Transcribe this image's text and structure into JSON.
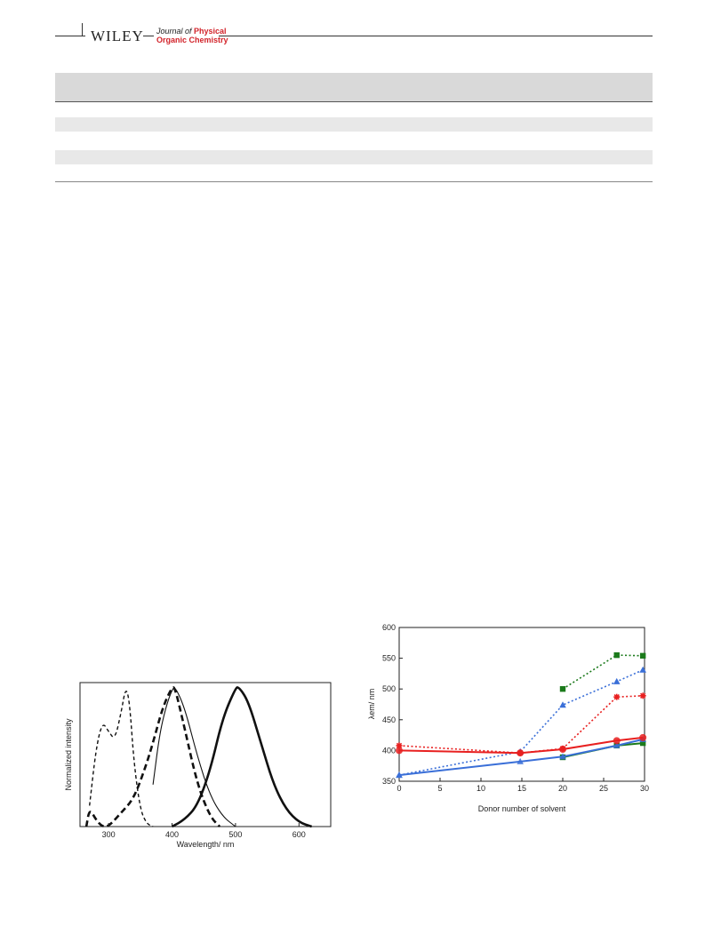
{
  "header": {
    "publisher": "WILEY",
    "journal_prefix": "Journal of ",
    "journal_word": "Physical",
    "journal_line2": "Organic Chemistry"
  },
  "figure_left": {
    "ylabel": "Normalized intensity",
    "xlabel": "Wavelength/ nm",
    "xticks": [
      300,
      400,
      500,
      600
    ]
  },
  "figure_right": {
    "ylabel": "λem/ nm",
    "xlabel": "Donor number of solvent",
    "xticks": [
      0,
      5,
      10,
      15,
      20,
      25,
      30
    ],
    "yticks": [
      350,
      400,
      450,
      500,
      550,
      600
    ]
  },
  "chart_data": [
    {
      "type": "line",
      "xlabel": "Wavelength/ nm",
      "ylabel": "Normalized intensity",
      "xlim": [
        255,
        650
      ],
      "ylim": [
        0,
        1.03
      ],
      "series": [
        {
          "style": "thin-dashed",
          "x": [
            270,
            280,
            290,
            300,
            310,
            320,
            327,
            333,
            340,
            350,
            360,
            370
          ],
          "y": [
            0.15,
            0.55,
            0.75,
            0.68,
            0.62,
            0.82,
            1.0,
            0.9,
            0.45,
            0.12,
            0.02,
            0.0
          ]
        },
        {
          "style": "thick-dashed",
          "x": [
            265,
            270,
            280,
            290,
            300,
            320,
            340,
            360,
            370,
            385,
            400,
            405,
            420,
            440,
            460,
            475
          ],
          "y": [
            0.0,
            0.13,
            0.05,
            0.0,
            0.0,
            0.1,
            0.2,
            0.45,
            0.6,
            0.85,
            1.0,
            0.99,
            0.7,
            0.3,
            0.07,
            0.0
          ]
        },
        {
          "style": "thin-solid",
          "x": [
            370,
            380,
            390,
            400,
            405,
            420,
            440,
            460,
            480,
            500
          ],
          "y": [
            0.3,
            0.65,
            0.85,
            0.98,
            1.0,
            0.85,
            0.5,
            0.22,
            0.07,
            0.0
          ]
        },
        {
          "style": "thick-solid",
          "x": [
            400,
            420,
            440,
            460,
            480,
            500,
            505,
            520,
            540,
            560,
            580,
            600,
            620
          ],
          "y": [
            0.0,
            0.05,
            0.15,
            0.4,
            0.78,
            0.99,
            1.0,
            0.9,
            0.6,
            0.3,
            0.12,
            0.03,
            0.0
          ]
        }
      ]
    },
    {
      "type": "line",
      "xlabel": "Donor number of solvent",
      "ylabel": "λem/ nm",
      "xlim": [
        0,
        30
      ],
      "ylim": [
        350,
        600
      ],
      "series": [
        {
          "color": "#1b7a1b",
          "marker": "square",
          "dash": "solid",
          "x": [
            20,
            26.6,
            29.8
          ],
          "y": [
            389,
            408,
            412
          ]
        },
        {
          "color": "#1b7a1b",
          "marker": "square",
          "dash": "dotted",
          "x": [
            20,
            26.6,
            29.8
          ],
          "y": [
            500,
            555,
            554
          ]
        },
        {
          "color": "#3a6fd8",
          "marker": "triangle",
          "dash": "solid",
          "x": [
            0,
            14.8,
            20,
            26.6,
            29.8
          ],
          "y": [
            360,
            382,
            390,
            408,
            418
          ]
        },
        {
          "color": "#3a6fd8",
          "marker": "triangle",
          "dash": "dotted",
          "x": [
            0,
            14.8,
            20,
            26.6,
            29.8
          ],
          "y": [
            360,
            398,
            474,
            512,
            531
          ]
        },
        {
          "color": "#e82020",
          "marker": "circle",
          "dash": "solid",
          "x": [
            0,
            14.8,
            20,
            26.6,
            29.8
          ],
          "y": [
            400,
            396,
            402,
            416,
            421
          ]
        },
        {
          "color": "#e82020",
          "marker": "asterisk",
          "dash": "dotted",
          "x": [
            0,
            14.8,
            20,
            26.6,
            29.8
          ],
          "y": [
            408,
            396,
            403,
            487,
            489
          ]
        }
      ]
    }
  ]
}
